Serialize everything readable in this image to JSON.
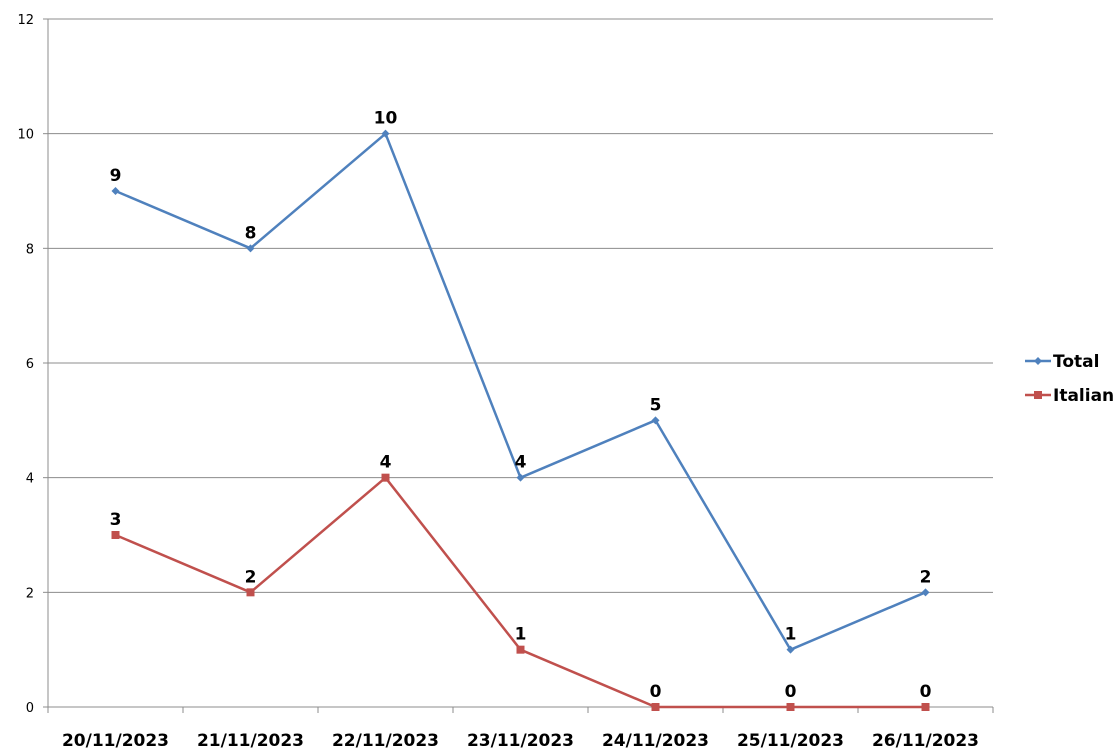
{
  "chart_data": {
    "type": "line",
    "title": "",
    "xlabel": "",
    "ylabel": "",
    "categories": [
      "20/11/2023",
      "21/11/2023",
      "22/11/2023",
      "23/11/2023",
      "24/11/2023",
      "25/11/2023",
      "26/11/2023"
    ],
    "ylim": [
      0,
      12
    ],
    "yticks": [
      0,
      2,
      4,
      6,
      8,
      10,
      12
    ],
    "grid": true,
    "legend_position": "right",
    "series": [
      {
        "name": "Total",
        "values": [
          9,
          8,
          10,
          4,
          5,
          1,
          2
        ],
        "color": "#4F81BD",
        "marker": "diamond"
      },
      {
        "name": "Italian",
        "values": [
          3,
          2,
          4,
          1,
          0,
          0,
          0
        ],
        "color": "#C0504D",
        "marker": "square"
      }
    ]
  }
}
